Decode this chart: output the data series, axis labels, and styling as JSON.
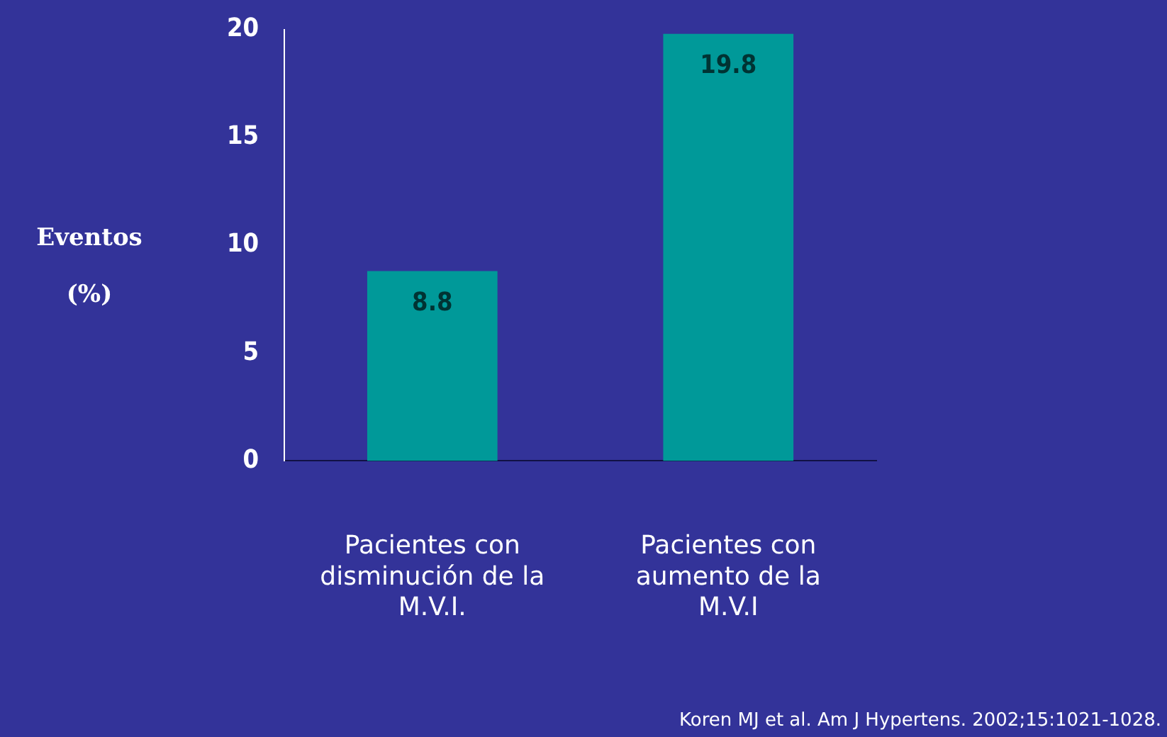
{
  "chart_data": {
    "type": "bar",
    "categories": [
      "Pacientes con disminución de la M.V.I.",
      "Pacientes con aumento de la M.V.I"
    ],
    "values": [
      8.8,
      19.8
    ],
    "color": "#009999",
    "ylabel": "Eventos (%)",
    "ylim": [
      0,
      20
    ],
    "yticks": [
      0,
      5,
      10,
      15,
      20
    ],
    "grid": false,
    "legend": false,
    "data_labels": true,
    "annotations": [
      "Koren MJ et al. Am J Hypertens. 2002;15:1021-1028."
    ]
  }
}
